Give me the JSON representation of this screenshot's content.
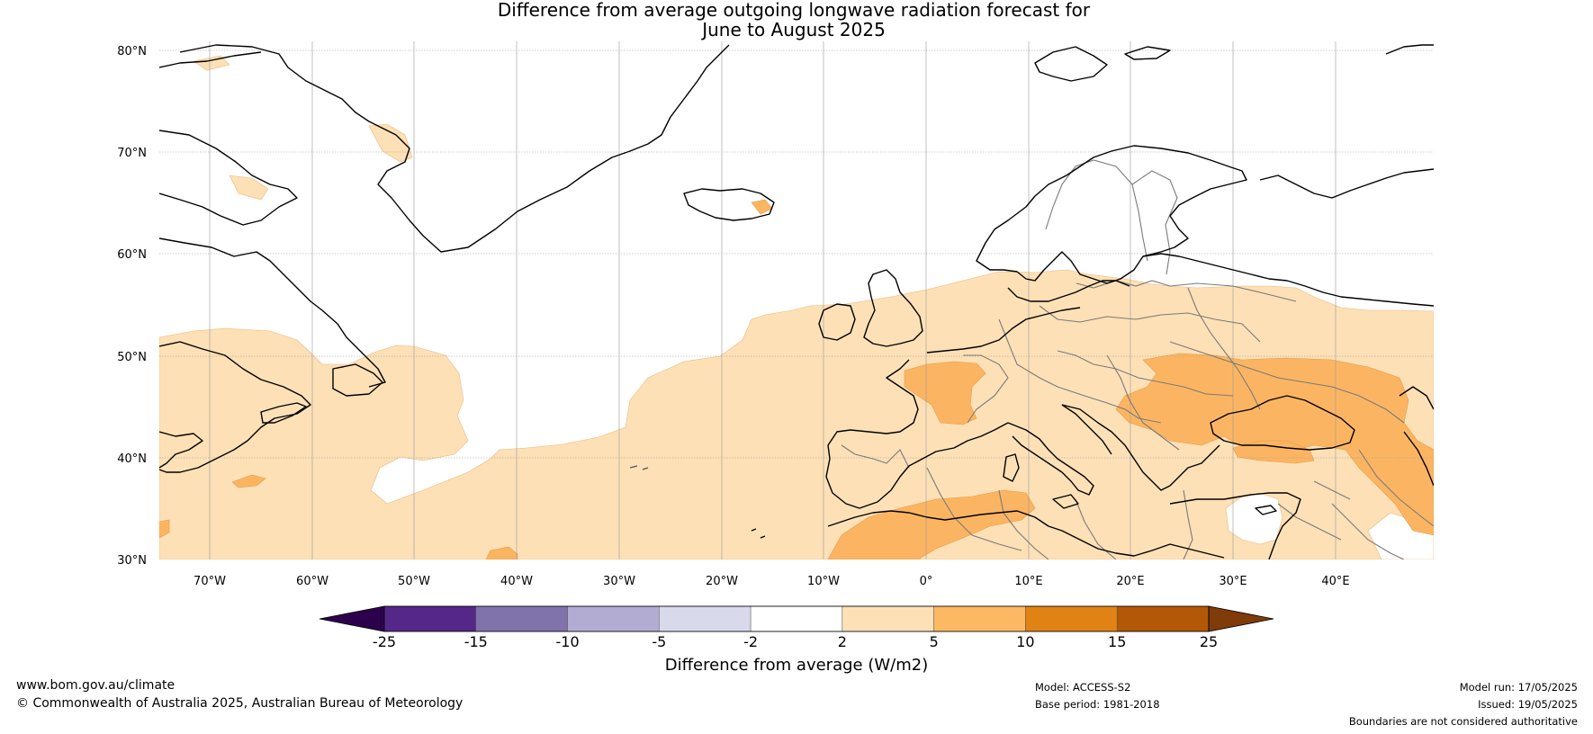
{
  "title_line1": "Difference from average outgoing longwave radiation forecast for",
  "title_line2": "June to August 2025",
  "map": {
    "lat_labels": [
      "80°N",
      "70°N",
      "60°N",
      "50°N",
      "40°N",
      "30°N"
    ],
    "lon_labels": [
      "70°W",
      "60°W",
      "50°W",
      "40°W",
      "30°W",
      "20°W",
      "10°W",
      "0°",
      "10°E",
      "20°E",
      "30°E",
      "40°E"
    ],
    "colors": {
      "ocean": "#ffffff",
      "coast": "#000000",
      "border": "#7a7a7a",
      "grid": "#888888",
      "positive_2_5": "#fde0b6",
      "positive_5_10": "#fbb562"
    }
  },
  "colorbar": {
    "ticks": [
      "-25",
      "-15",
      "-10",
      "-5",
      "-2",
      "2",
      "5",
      "10",
      "15",
      "25"
    ],
    "label": "Difference from average (W/m2)",
    "colors": [
      "#2d004b",
      "#542788",
      "#8073ac",
      "#b2abd2",
      "#d8daeb",
      "#ffffff",
      "#fee0b6",
      "#fdb863",
      "#e08214",
      "#b35806",
      "#7f3b08"
    ]
  },
  "footer": {
    "website": "www.bom.gov.au/climate",
    "copyright": "© Commonwealth of Australia 2025, Australian Bureau of Meteorology",
    "model": "Model: ACCESS-S2",
    "base_period": "Base period: 1981-2018",
    "model_run": "Model run: 17/05/2025",
    "issued": "Issued: 19/05/2025",
    "disclaimer": "Boundaries are not considered authoritative"
  }
}
